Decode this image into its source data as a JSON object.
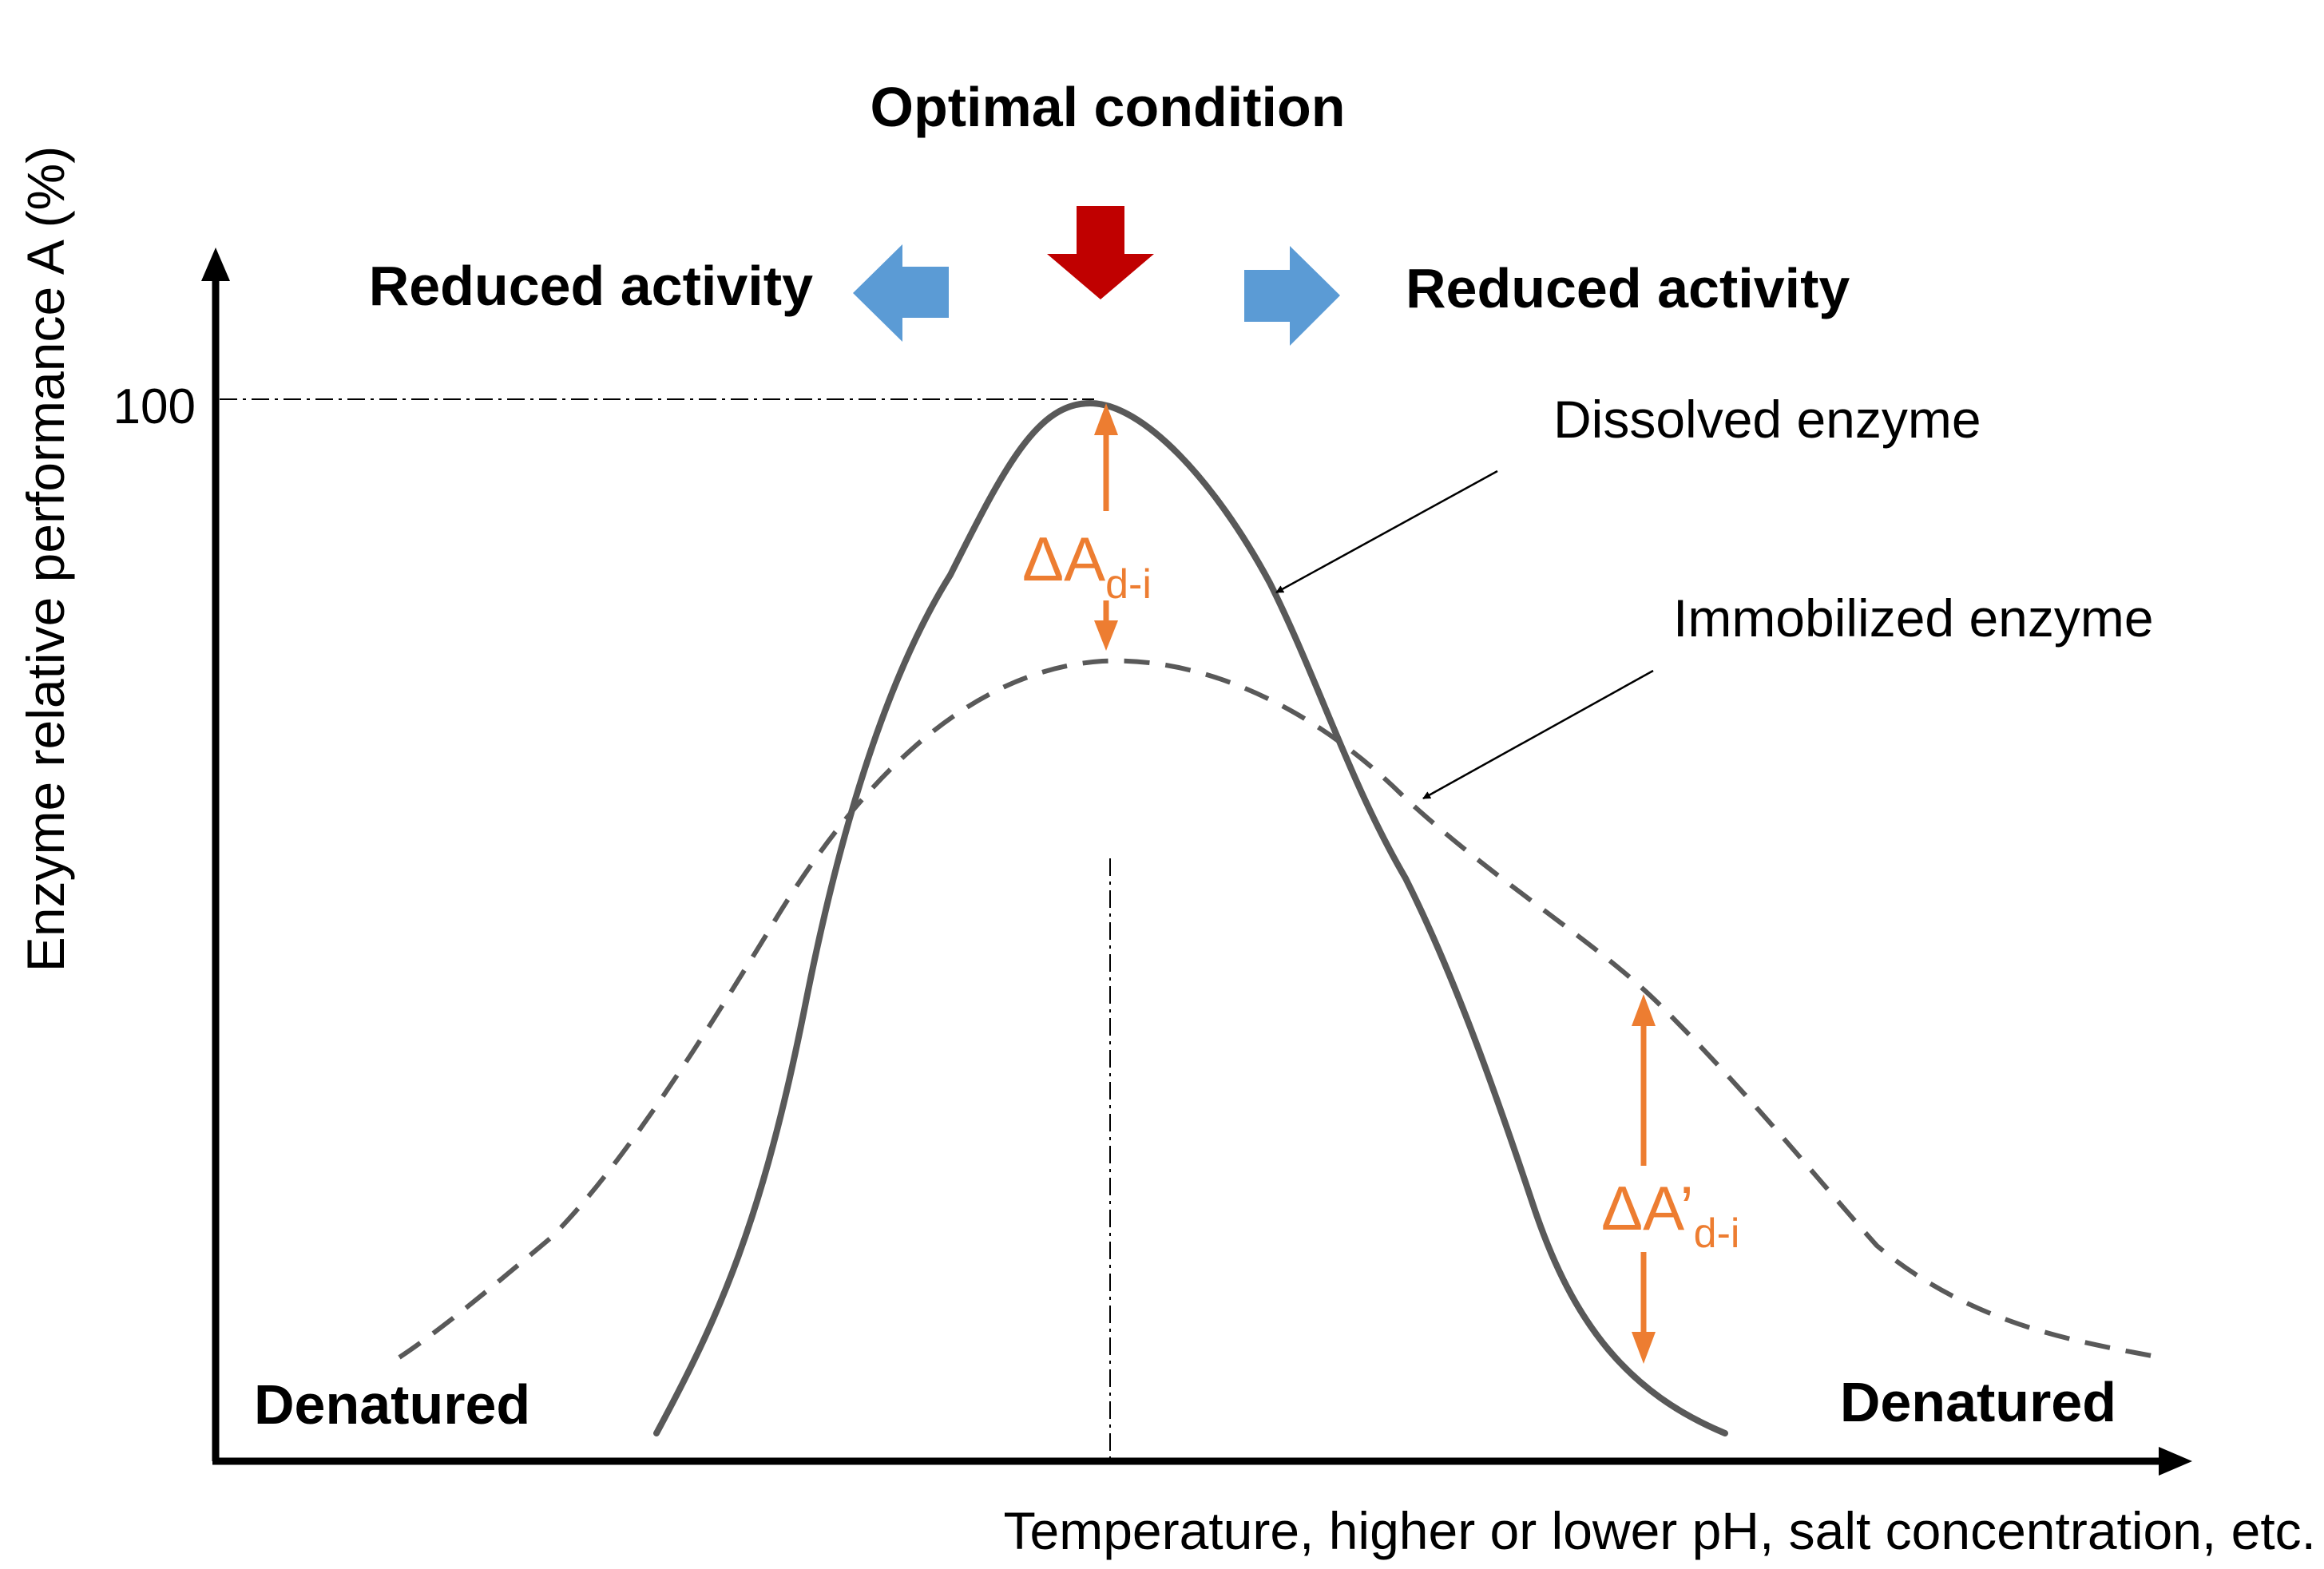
{
  "title": "Optimal condition",
  "y_axis_label": "Enzyme relative performance A (%)",
  "x_axis_label": "Temperature, higher or lower pH, salt concentration, etc.",
  "y_tick_100": "100",
  "left_region_label": "Reduced activity",
  "right_region_label": "Reduced activity",
  "left_bottom_label": "Denatured",
  "right_bottom_label": "Denatured",
  "dissolved_label": "Dissolved enzyme",
  "immobilized_label": "Immobilized enzyme",
  "delta_top": {
    "main": "ΔA",
    "sub": "d-i"
  },
  "delta_right": {
    "main": "ΔA’",
    "sub": "d-i"
  },
  "colors": {
    "curve": "#595959",
    "axis": "#000000",
    "delta": "#ED7D31",
    "optimal_arrow": "#C00000",
    "side_arrows": "#5B9BD5"
  }
}
